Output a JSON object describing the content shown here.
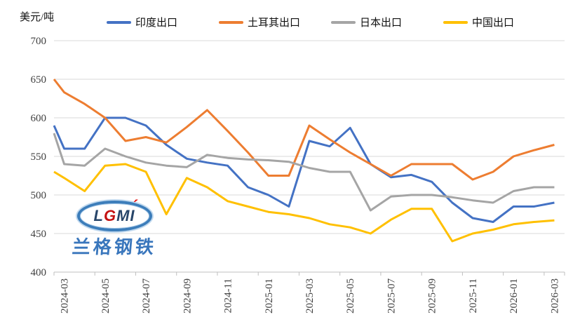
{
  "chart_data": {
    "type": "line",
    "title": "",
    "unit_label": "美元/吨",
    "ylabel": "美元/吨",
    "grid": true,
    "legend_position": "top",
    "ylim": [
      400,
      700
    ],
    "y_ticks": [
      400,
      450,
      500,
      550,
      600,
      650,
      700
    ],
    "categories": [
      "2024-03",
      "2024-04",
      "2024-05",
      "2024-06",
      "2024-07",
      "2024-08",
      "2024-09",
      "2024-10",
      "2024-11",
      "2024-12",
      "2025-01",
      "2025-02",
      "2025-03",
      "2025-04",
      "2025-05",
      "2025-06",
      "2025-07",
      "2025-08",
      "2025-09",
      "2025-10",
      "2025-11",
      "2025-12",
      "2026-01",
      "2026-02",
      "2026-03"
    ],
    "x_tick_labels": [
      "2024-03",
      "2024-05",
      "2024-07",
      "2024-09",
      "2024-11",
      "2025-01",
      "2025-03",
      "2025-05",
      "2025-07",
      "2025-09",
      "2025-11",
      "2026-01",
      "2026-03"
    ],
    "series": [
      {
        "id": "india",
        "name": "印度出口",
        "color": "#4472C4",
        "edge_start": 590,
        "values": [
          560,
          560,
          600,
          600,
          590,
          565,
          547,
          542,
          538,
          510,
          500,
          485,
          570,
          563,
          587,
          540,
          523,
          526,
          517,
          490,
          470,
          465,
          485,
          485,
          490
        ]
      },
      {
        "id": "turkey",
        "name": "土耳其出口",
        "color": "#ED7D31",
        "edge_start": 650,
        "values": [
          633,
          618,
          600,
          570,
          575,
          568,
          588,
          610,
          583,
          555,
          525,
          525,
          590,
          572,
          555,
          540,
          525,
          540,
          540,
          540,
          520,
          530,
          550,
          558,
          565
        ]
      },
      {
        "id": "japan",
        "name": "日本出口",
        "color": "#A5A5A5",
        "edge_start": 580,
        "values": [
          540,
          538,
          560,
          550,
          542,
          538,
          536,
          552,
          548,
          546,
          545,
          543,
          535,
          530,
          530,
          480,
          498,
          500,
          500,
          497,
          493,
          490,
          505,
          510,
          510
        ]
      },
      {
        "id": "china",
        "name": "中国出口",
        "color": "#FFC000",
        "edge_start": 530,
        "values": [
          522,
          505,
          538,
          540,
          530,
          475,
          522,
          510,
          492,
          485,
          478,
          475,
          470,
          462,
          458,
          450,
          468,
          482,
          482,
          440,
          450,
          455,
          462,
          465,
          467
        ]
      }
    ],
    "gridline_color": "#D9D9D9",
    "axis_color": "#BFBFBF",
    "axis_text_color": "#3F3F3F"
  },
  "watermark": {
    "logo_letters": [
      "L",
      "G",
      "M",
      "I"
    ],
    "logo_accent": "´",
    "company_text": "兰格钢铁"
  }
}
